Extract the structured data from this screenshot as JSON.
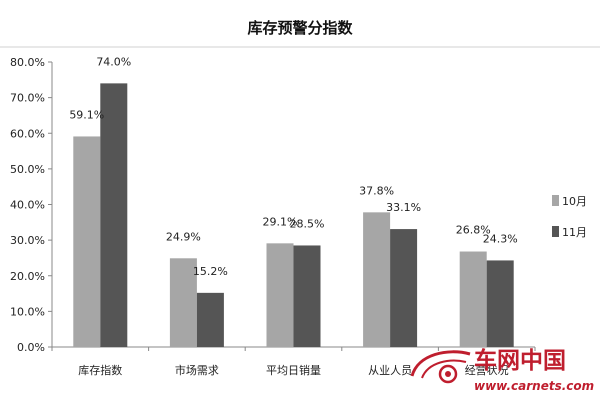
{
  "chart_data": {
    "type": "bar",
    "title": "库存预警分指数",
    "categories": [
      "库存指数",
      "市场需求",
      "平均日销量",
      "从业人员",
      "经营状况"
    ],
    "series": [
      {
        "name": "10月",
        "values": [
          59.1,
          24.9,
          29.1,
          37.8,
          26.8
        ],
        "labels": [
          "59.1%",
          "24.9%",
          "29.1%",
          "37.8%",
          "26.8%"
        ],
        "color": "#a6a6a6"
      },
      {
        "name": "11月",
        "values": [
          74.0,
          15.2,
          28.5,
          33.1,
          24.3
        ],
        "labels": [
          "74.0%",
          "15.2%",
          "28.5%",
          "33.1%",
          "24.3%"
        ],
        "color": "#555555"
      }
    ],
    "ylim": [
      0,
      80
    ],
    "yticks": [
      0,
      10,
      20,
      30,
      40,
      50,
      60,
      70,
      80
    ],
    "ytick_labels": [
      "0.0%",
      "10.0%",
      "20.0%",
      "30.0%",
      "40.0%",
      "50.0%",
      "60.0%",
      "70.0%",
      "80.0%"
    ],
    "xlabel": "",
    "ylabel": "",
    "legend_position": "right",
    "grid": false
  },
  "watermark": {
    "brand": "车网中国",
    "url": "www.carnets.com"
  }
}
